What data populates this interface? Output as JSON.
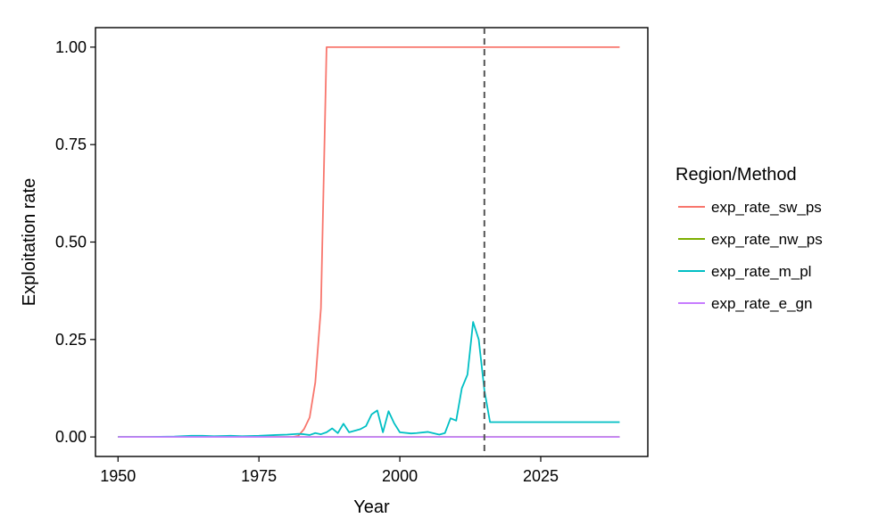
{
  "chart_data": {
    "type": "line",
    "xlabel": "Year",
    "ylabel": "Exploitation rate",
    "xlim": [
      1946,
      2044
    ],
    "ylim": [
      -0.05,
      1.05
    ],
    "x_ticks": [
      1950,
      1975,
      2000,
      2025
    ],
    "x_tick_labels": [
      "1950",
      "1975",
      "2000",
      "2025"
    ],
    "y_ticks": [
      0,
      0.25,
      0.5,
      0.75,
      1.0
    ],
    "y_tick_labels": [
      "0.00",
      "0.25",
      "0.50",
      "0.75",
      "1.00"
    ],
    "grid": false,
    "vline": {
      "x": 2015,
      "style": "dashed",
      "color": "#555555"
    },
    "legend": {
      "title": "Region/Method",
      "position": "right"
    },
    "series": [
      {
        "name": "exp_rate_sw_ps",
        "color": "#F8766D",
        "x": [
          1950,
          1981,
          1982,
          1983,
          1984,
          1985,
          1986,
          1987,
          1988,
          2039
        ],
        "y": [
          0,
          0,
          0.003,
          0.02,
          0.05,
          0.14,
          0.33,
          1.0,
          1.0,
          1.0
        ]
      },
      {
        "name": "exp_rate_nw_ps",
        "color": "#7CAE00",
        "x": [
          1950,
          2039
        ],
        "y": [
          0,
          0
        ]
      },
      {
        "name": "exp_rate_m_pl",
        "color": "#00BFC4",
        "x": [
          1950,
          1955,
          1960,
          1963,
          1965,
          1967,
          1970,
          1972,
          1975,
          1978,
          1980,
          1982,
          1983,
          1984,
          1985,
          1986,
          1987,
          1988,
          1989,
          1990,
          1991,
          1992,
          1993,
          1994,
          1995,
          1996,
          1997,
          1998,
          1999,
          2000,
          2002,
          2003,
          2005,
          2007,
          2008,
          2009,
          2010,
          2011,
          2012,
          2013,
          2014,
          2015,
          2016,
          2039
        ],
        "y": [
          0,
          0,
          0.001,
          0.003,
          0.003,
          0.002,
          0.003,
          0.002,
          0.003,
          0.005,
          0.006,
          0.008,
          0.007,
          0.005,
          0.01,
          0.007,
          0.012,
          0.022,
          0.01,
          0.034,
          0.012,
          0.016,
          0.02,
          0.028,
          0.058,
          0.068,
          0.012,
          0.066,
          0.035,
          0.012,
          0.009,
          0.01,
          0.013,
          0.006,
          0.01,
          0.048,
          0.042,
          0.125,
          0.16,
          0.295,
          0.25,
          0.12,
          0.038,
          0.038
        ]
      },
      {
        "name": "exp_rate_e_gn",
        "color": "#C77CFF",
        "x": [
          1950,
          2039
        ],
        "y": [
          0,
          0
        ]
      }
    ]
  }
}
